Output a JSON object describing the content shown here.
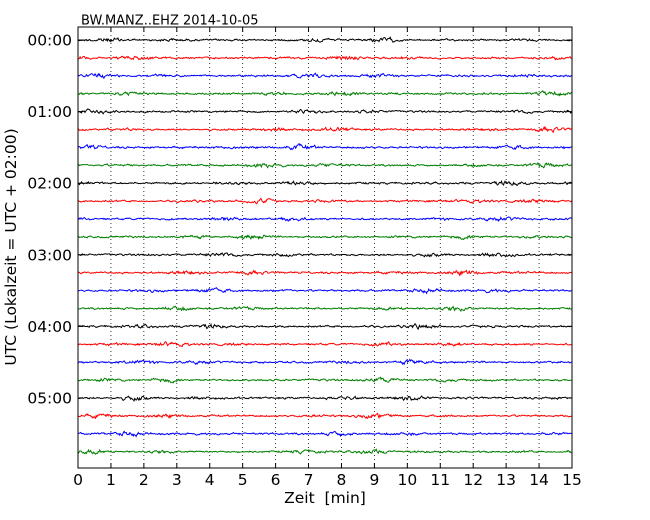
{
  "chart_data": {
    "type": "line",
    "title": "BW.MANZ..EHZ 2014-10-05",
    "xlabel": "Zeit  [min]",
    "ylabel": "UTC (Lokalzeit = UTC + 02:00)",
    "xlim": [
      0,
      15
    ],
    "x_ticks": [
      "0",
      "1",
      "2",
      "3",
      "4",
      "5",
      "6",
      "7",
      "8",
      "9",
      "10",
      "11",
      "12",
      "13",
      "14",
      "15"
    ],
    "y_ticks": [
      "00:00",
      "01:00",
      "02:00",
      "03:00",
      "04:00",
      "05:00"
    ],
    "trace_interval_min": 15,
    "trace_count": 24,
    "trace_colors": [
      "#000000",
      "#ff0000",
      "#0000ff",
      "#007f00"
    ],
    "grid": {
      "vertical": true,
      "style": "dotted"
    }
  }
}
